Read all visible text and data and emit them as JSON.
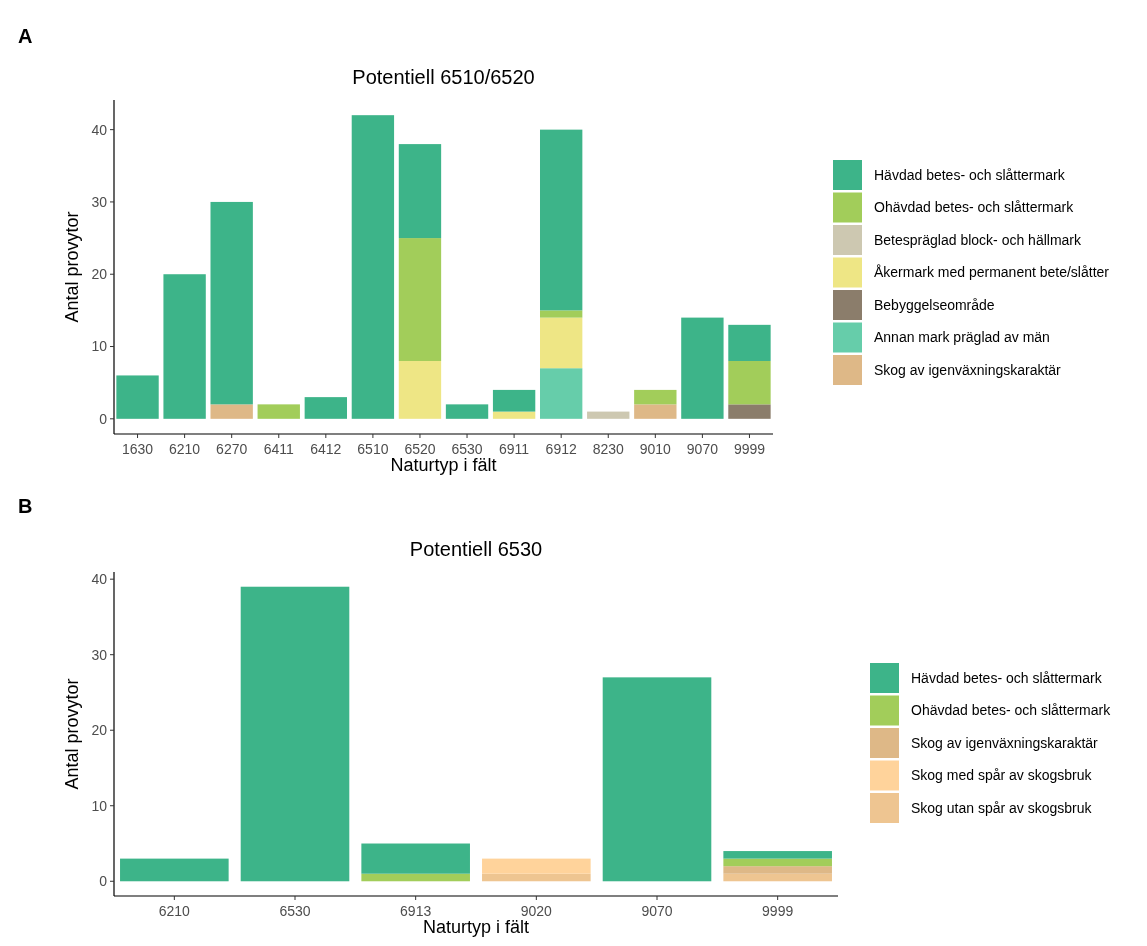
{
  "chart_data": [
    {
      "type": "bar",
      "title": "Potentiell 6510/6520",
      "xlabel": "Naturtyp i fält",
      "ylabel": "Antal provytor",
      "annotations": [
        "A"
      ],
      "stacked": true,
      "legend": "right",
      "grid": false,
      "categories": [
        "1630",
        "6210",
        "6270",
        "6411",
        "6412",
        "6510",
        "6520",
        "6530",
        "6911",
        "6912",
        "8230",
        "9010",
        "9070",
        "9999"
      ],
      "ylim": [
        -2.1,
        44.1
      ],
      "yticks": [
        0,
        10,
        20,
        30,
        40
      ],
      "series": [
        {
          "name": "Skog av igenväxningskaraktär",
          "color": "#deb887",
          "values": [
            0,
            0,
            2,
            0,
            0,
            0,
            0,
            0,
            0,
            0,
            0,
            2,
            0,
            0
          ]
        },
        {
          "name": "Annan mark präglad av män",
          "color": "#66cdaa",
          "values": [
            0,
            0,
            0,
            0,
            0,
            0,
            0,
            0,
            0,
            7,
            0,
            0,
            0,
            0
          ]
        },
        {
          "name": "Bebyggelseområde",
          "color": "#8b7d6b",
          "values": [
            0,
            0,
            0,
            0,
            0,
            0,
            0,
            0,
            0,
            0,
            0,
            0,
            0,
            2
          ]
        },
        {
          "name": "Åkermark med permanent bete/slåtter",
          "color": "#eee685",
          "values": [
            0,
            0,
            0,
            0,
            0,
            0,
            8,
            0,
            1,
            7,
            0,
            0,
            0,
            0
          ]
        },
        {
          "name": "Betespräglad block- och hällmark",
          "color": "#cdc8b1",
          "values": [
            0,
            0,
            0,
            0,
            0,
            0,
            0,
            0,
            0,
            0,
            1,
            0,
            0,
            0
          ]
        },
        {
          "name": "Ohävdad betes- och slåttermark",
          "color": "#a2cd5a",
          "values": [
            0,
            0,
            0,
            2,
            0,
            0,
            17,
            0,
            0,
            1,
            0,
            2,
            0,
            6
          ]
        },
        {
          "name": "Hävdad betes- och slåttermark",
          "color": "#3db489",
          "values": [
            6,
            20,
            28,
            0,
            3,
            42,
            13,
            2,
            3,
            25,
            0,
            0,
            14,
            5
          ]
        }
      ]
    },
    {
      "type": "bar",
      "title": "Potentiell 6530",
      "xlabel": "Naturtyp i fält",
      "ylabel": "Antal provytor",
      "annotations": [
        "B"
      ],
      "stacked": true,
      "legend": "right",
      "grid": false,
      "categories": [
        "6210",
        "6530",
        "6913",
        "9020",
        "9070",
        "9999"
      ],
      "ylim": [
        -1.95,
        40.95
      ],
      "yticks": [
        0,
        10,
        20,
        30,
        40
      ],
      "series": [
        {
          "name": "Skog utan spår av skogsbruk",
          "color": "#eec591",
          "values": [
            0,
            0,
            0,
            1,
            0,
            1
          ]
        },
        {
          "name": "Skog med spår av skogsbruk",
          "color": "#ffd39b",
          "values": [
            0,
            0,
            0,
            2,
            0,
            0
          ]
        },
        {
          "name": "Skog av igenväxningskaraktär",
          "color": "#deb887",
          "values": [
            0,
            0,
            0,
            0,
            0,
            1
          ]
        },
        {
          "name": "Ohävdad betes- och slåttermark",
          "color": "#a2cd5a",
          "values": [
            0,
            0,
            1,
            0,
            0,
            1
          ]
        },
        {
          "name": "Hävdad betes- och slåttermark",
          "color": "#3db489",
          "values": [
            3,
            39,
            4,
            0,
            27,
            1
          ]
        }
      ]
    }
  ]
}
